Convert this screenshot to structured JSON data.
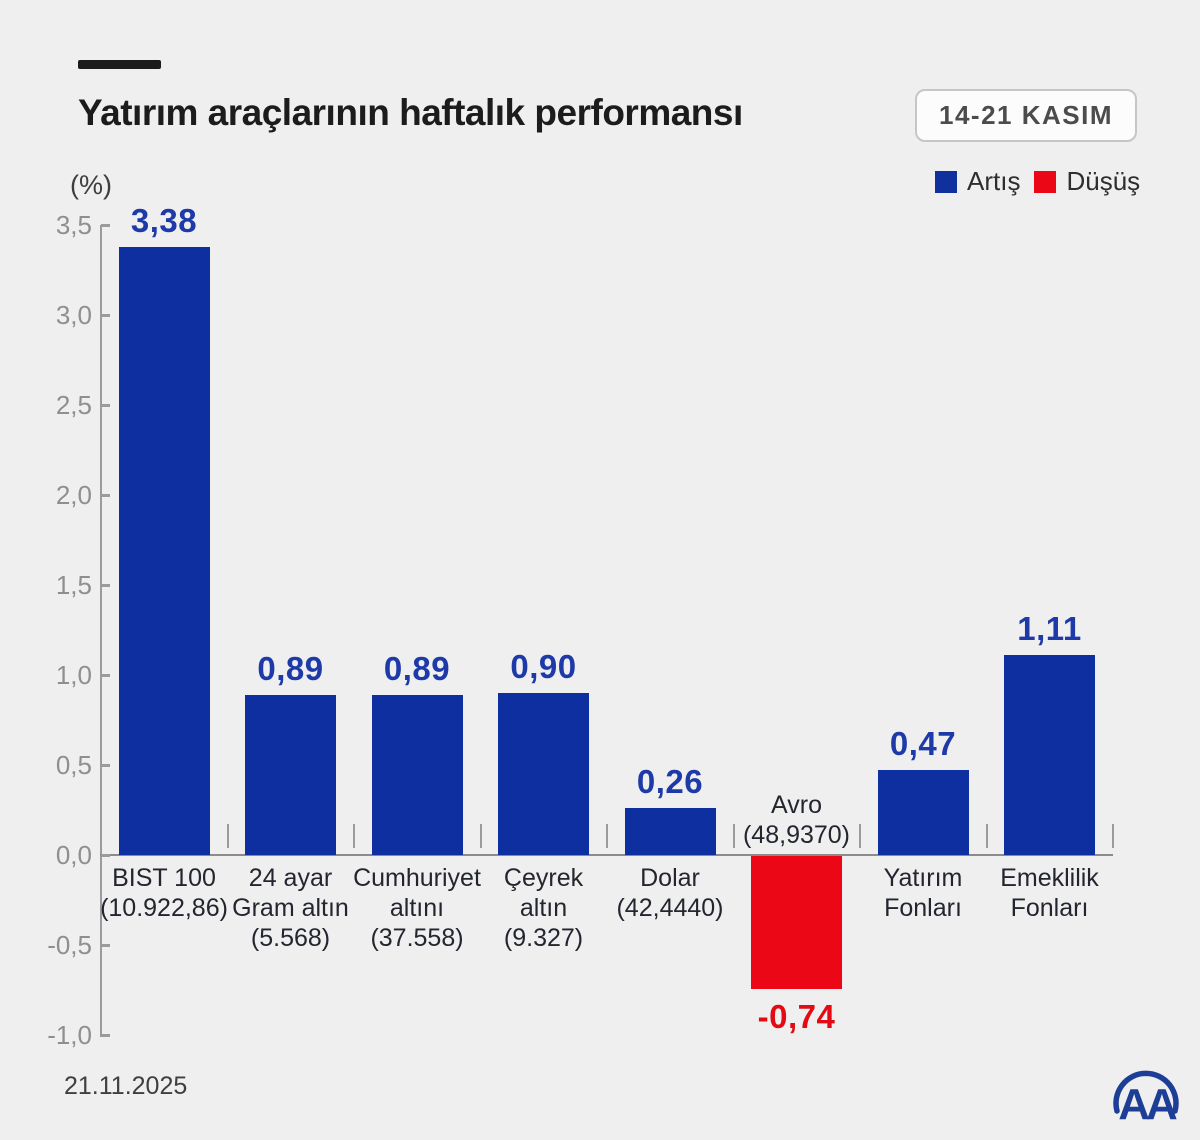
{
  "header": {
    "title": "Yatırım araçlarının haftalık performansı",
    "date_badge": "14-21 KASIM"
  },
  "legend": {
    "increase": {
      "label": "Artış",
      "color": "#10309e"
    },
    "decrease": {
      "label": "Düşüş",
      "color": "#ec0716"
    }
  },
  "colors": {
    "background": "#efefef",
    "bar_positive": "#0e2f9f",
    "bar_negative": "#ec0716",
    "value_label_positive": "#1d3aa8",
    "value_label_negative": "#e40a14",
    "axis": "#9b9b9b",
    "logo_blue": "#1c3e96"
  },
  "footer": {
    "date": "21.11.2025",
    "logo_text": "AA"
  },
  "chart_data": {
    "type": "bar",
    "title": "Yatırım araçlarının haftalık performansı",
    "subtitle_period": "14-21 KASIM",
    "ylabel": "(%)",
    "ylim": [
      -1.0,
      3.5
    ],
    "ytick_step": 0.5,
    "grid": false,
    "legend_position": "top-right",
    "categories": [
      "BIST 100",
      "24 ayar Gram altın",
      "Cumhuriyet altını",
      "Çeyrek altın",
      "Dolar",
      "Avro",
      "Yatırım Fonları",
      "Emeklilik Fonları"
    ],
    "category_label_lines": [
      [
        "BIST 100",
        "(10.922,86)"
      ],
      [
        "24 ayar",
        "Gram altın",
        "(5.568)"
      ],
      [
        "Cumhuriyet",
        "altını",
        "(37.558)"
      ],
      [
        "Çeyrek",
        "altın",
        "(9.327)"
      ],
      [
        "Dolar",
        "(42,4440)"
      ],
      [
        "Avro",
        "(48,9370)"
      ],
      [
        "Yatırım",
        "Fonları"
      ],
      [
        "Emeklilik",
        "Fonları"
      ]
    ],
    "values": [
      3.38,
      0.89,
      0.89,
      0.9,
      0.26,
      -0.74,
      0.47,
      1.11
    ],
    "value_labels": [
      "3,38",
      "0,89",
      "0,89",
      "0,90",
      "0,26",
      "-0,74",
      "0,47",
      "1,11"
    ],
    "ytick_values": [
      3.5,
      3.0,
      2.5,
      2.0,
      1.5,
      1.0,
      0.5,
      0.0,
      -0.5,
      -1.0
    ],
    "ytick_labels": [
      "3,5",
      "3,0",
      "2,5",
      "2,0",
      "1,5",
      "1,0",
      "0,5",
      "0,0",
      "-0,5",
      "-1,0"
    ]
  }
}
